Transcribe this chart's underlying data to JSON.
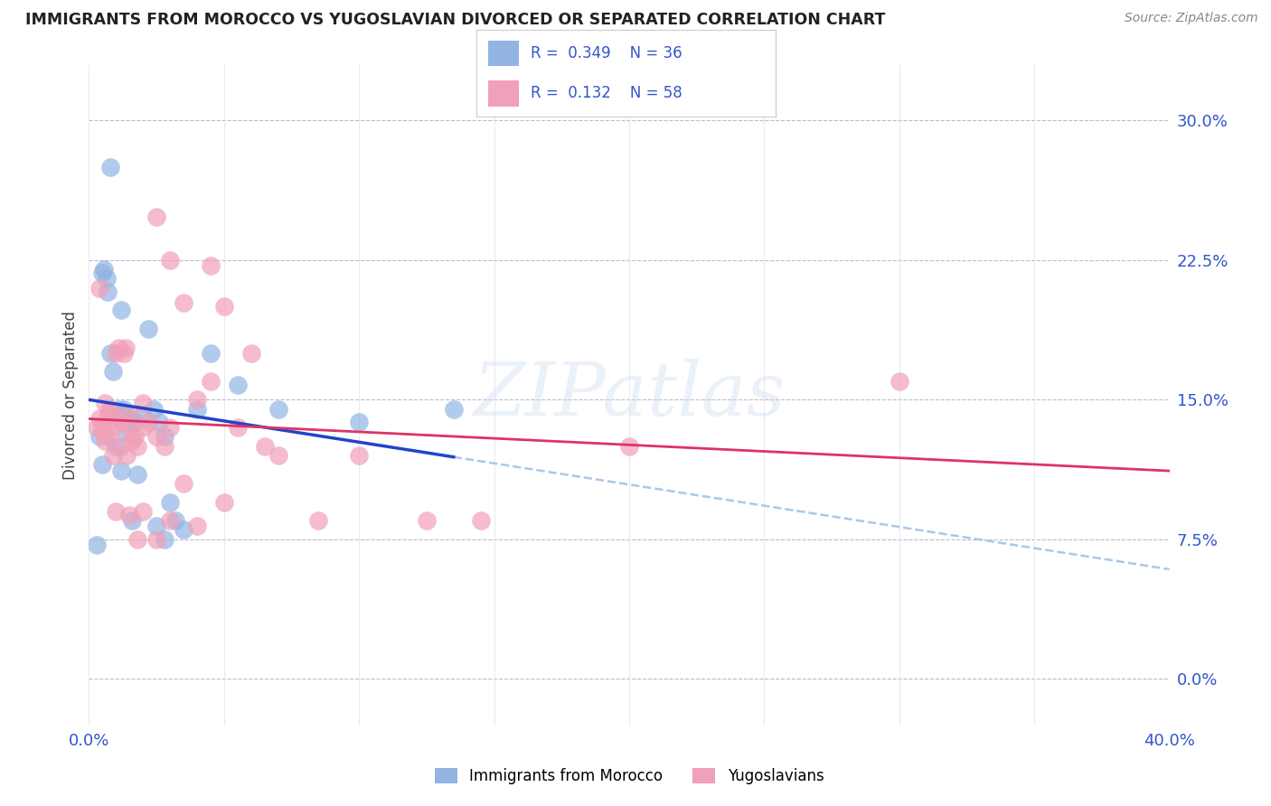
{
  "title": "IMMIGRANTS FROM MOROCCO VS YUGOSLAVIAN DIVORCED OR SEPARATED CORRELATION CHART",
  "source": "Source: ZipAtlas.com",
  "ylabel": "Divorced or Separated",
  "xlim": [
    0.0,
    40.0
  ],
  "ylim": [
    -2.5,
    33.0
  ],
  "yaxis_values": [
    0.0,
    7.5,
    15.0,
    22.5,
    30.0
  ],
  "xaxis_ticks": [
    0.0,
    5.0,
    10.0,
    15.0,
    20.0,
    25.0,
    30.0,
    35.0,
    40.0
  ],
  "legend_blue_r": "0.349",
  "legend_blue_n": "36",
  "legend_pink_r": "0.132",
  "legend_pink_n": "58",
  "blue_color": "#92b4e3",
  "pink_color": "#f0a0b8",
  "trend_blue_color": "#2244cc",
  "trend_pink_color": "#dd3366",
  "trend_dashed_color": "#a8c8ec",
  "watermark": "ZIPatlas",
  "blue_scatter": [
    [
      0.3,
      7.2
    ],
    [
      0.4,
      13.0
    ],
    [
      0.5,
      21.8
    ],
    [
      0.55,
      22.0
    ],
    [
      0.65,
      21.5
    ],
    [
      0.7,
      20.8
    ],
    [
      0.8,
      17.5
    ],
    [
      0.9,
      16.5
    ],
    [
      1.0,
      12.5
    ],
    [
      1.1,
      14.5
    ],
    [
      1.2,
      19.8
    ],
    [
      1.3,
      14.5
    ],
    [
      1.4,
      13.2
    ],
    [
      1.5,
      14.0
    ],
    [
      1.6,
      8.5
    ],
    [
      1.7,
      13.8
    ],
    [
      1.8,
      11.0
    ],
    [
      2.0,
      14.2
    ],
    [
      2.2,
      18.8
    ],
    [
      2.4,
      14.5
    ],
    [
      2.6,
      13.8
    ],
    [
      2.8,
      13.0
    ],
    [
      3.0,
      9.5
    ],
    [
      3.2,
      8.5
    ],
    [
      3.5,
      8.0
    ],
    [
      4.0,
      14.5
    ],
    [
      4.5,
      17.5
    ],
    [
      5.5,
      15.8
    ],
    [
      2.5,
      8.2
    ],
    [
      0.8,
      27.5
    ],
    [
      7.0,
      14.5
    ],
    [
      10.0,
      13.8
    ],
    [
      2.8,
      7.5
    ],
    [
      1.2,
      11.2
    ],
    [
      0.5,
      11.5
    ],
    [
      13.5,
      14.5
    ]
  ],
  "pink_scatter": [
    [
      0.3,
      13.5
    ],
    [
      0.4,
      14.0
    ],
    [
      0.5,
      13.5
    ],
    [
      0.55,
      13.2
    ],
    [
      0.6,
      12.8
    ],
    [
      0.7,
      14.2
    ],
    [
      0.75,
      13.0
    ],
    [
      0.8,
      14.5
    ],
    [
      0.9,
      13.5
    ],
    [
      1.0,
      17.5
    ],
    [
      1.1,
      17.8
    ],
    [
      1.2,
      12.5
    ],
    [
      1.3,
      17.5
    ],
    [
      1.35,
      17.8
    ],
    [
      1.4,
      12.0
    ],
    [
      1.5,
      13.5
    ],
    [
      1.6,
      12.8
    ],
    [
      1.7,
      13.0
    ],
    [
      1.8,
      12.5
    ],
    [
      2.0,
      13.5
    ],
    [
      2.2,
      13.8
    ],
    [
      2.5,
      13.0
    ],
    [
      2.8,
      12.5
    ],
    [
      3.0,
      13.5
    ],
    [
      3.5,
      10.5
    ],
    [
      4.0,
      15.0
    ],
    [
      4.5,
      16.0
    ],
    [
      5.0,
      9.5
    ],
    [
      5.5,
      13.5
    ],
    [
      6.5,
      12.5
    ],
    [
      7.0,
      12.0
    ],
    [
      8.5,
      8.5
    ],
    [
      10.0,
      12.0
    ],
    [
      12.5,
      8.5
    ],
    [
      14.5,
      8.5
    ],
    [
      20.0,
      12.5
    ],
    [
      30.0,
      16.0
    ],
    [
      2.5,
      24.8
    ],
    [
      3.0,
      22.5
    ],
    [
      4.5,
      22.2
    ],
    [
      3.5,
      20.2
    ],
    [
      5.0,
      20.0
    ],
    [
      6.0,
      17.5
    ],
    [
      0.4,
      21.0
    ],
    [
      1.0,
      9.0
    ],
    [
      1.5,
      8.8
    ],
    [
      2.0,
      9.0
    ],
    [
      3.0,
      8.5
    ],
    [
      4.0,
      8.2
    ],
    [
      1.8,
      7.5
    ],
    [
      2.5,
      7.5
    ],
    [
      0.6,
      14.8
    ],
    [
      0.8,
      14.5
    ],
    [
      1.0,
      14.0
    ],
    [
      1.2,
      13.8
    ],
    [
      1.5,
      14.2
    ],
    [
      2.0,
      14.8
    ],
    [
      0.9,
      12.0
    ]
  ]
}
